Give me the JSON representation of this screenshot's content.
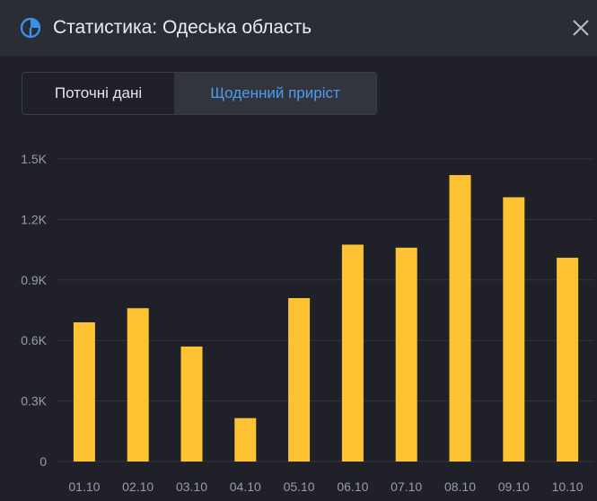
{
  "header": {
    "title": "Статистика: Одеська область",
    "icon": "pie-chart-icon",
    "close_icon": "close-icon",
    "accent_color": "#3d8fe8"
  },
  "tabs": [
    {
      "label": "Поточні дані",
      "active": false
    },
    {
      "label": "Щоденний приріст",
      "active": true
    }
  ],
  "chart_data": {
    "type": "bar",
    "categories": [
      "01.10",
      "02.10",
      "03.10",
      "04.10",
      "05.10",
      "06.10",
      "07.10",
      "08.10",
      "09.10",
      "10.10"
    ],
    "values": [
      690,
      760,
      570,
      215,
      810,
      1075,
      1060,
      1420,
      1310,
      1010
    ],
    "y_ticks": [
      "0",
      "0.3K",
      "0.6K",
      "0.9K",
      "1.2K",
      "1.5K"
    ],
    "y_tick_values": [
      0,
      300,
      600,
      900,
      1200,
      1500
    ],
    "ylim": [
      0,
      1500
    ],
    "grid": true,
    "bar_color": "#ffc233",
    "title": "",
    "xlabel": "",
    "ylabel": ""
  }
}
